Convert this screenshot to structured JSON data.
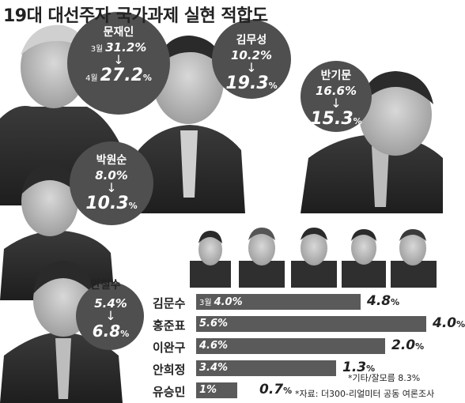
{
  "title": "19대 대선주자 국가과제 실현 적합도",
  "chart_data": {
    "type": "bar",
    "title": "19대 대선주자 국가과제 실현 적합도",
    "periods": [
      "3월",
      "4월"
    ],
    "categories": [
      "문재인",
      "김무성",
      "반기문",
      "박원순",
      "안철수",
      "김문수",
      "홍준표",
      "이완구",
      "안희정",
      "유승민"
    ],
    "series": [
      {
        "name": "3월",
        "values": [
          31.2,
          10.2,
          16.6,
          8.0,
          5.4,
          4.0,
          5.6,
          4.6,
          3.4,
          1.0
        ]
      },
      {
        "name": "4월",
        "values": [
          27.2,
          19.3,
          15.3,
          10.3,
          6.8,
          4.8,
          4.0,
          2.0,
          1.3,
          0.7
        ]
      }
    ],
    "bubbles": [
      {
        "name": "문재인",
        "old": "31.2",
        "new": "27.2",
        "show_period": true
      },
      {
        "name": "김무성",
        "old": "10.2",
        "new": "19.3",
        "show_period": false
      },
      {
        "name": "반기문",
        "old": "16.6",
        "new": "15.3",
        "show_period": false
      },
      {
        "name": "박원순",
        "old": "8.0",
        "new": "10.3",
        "show_period": false
      },
      {
        "name": "안철수",
        "old": "5.4",
        "new": "6.8",
        "show_period": false
      }
    ],
    "bars": [
      {
        "name": "김문수",
        "old": 4.0,
        "new": 4.8,
        "old_label": "4.0%",
        "new_label": "4.8",
        "show_period": true
      },
      {
        "name": "홍준표",
        "old": 5.6,
        "new": 4.0,
        "old_label": "5.6%",
        "new_label": "4.0",
        "show_period": false
      },
      {
        "name": "이완구",
        "old": 4.6,
        "new": 2.0,
        "old_label": "4.6%",
        "new_label": "2.0",
        "show_period": false
      },
      {
        "name": "안희정",
        "old": 3.4,
        "new": 1.3,
        "old_label": "3.4%",
        "new_label": "1.3",
        "show_period": false
      },
      {
        "name": "유승민",
        "old": 1.0,
        "new": 0.7,
        "old_label": "1%",
        "new_label": "0.7",
        "show_period": false
      }
    ],
    "unit": "%"
  },
  "notes": {
    "other": "*기타/잘모름 8.3%",
    "source": "*자료: 더300-리얼미터 공동 여론조사"
  },
  "colors": {
    "bubble": "#4f4f4f",
    "bar": "#5a5a5a",
    "photo_dark": "#2f2f2f",
    "photo_skin": "#bdbdbd"
  }
}
